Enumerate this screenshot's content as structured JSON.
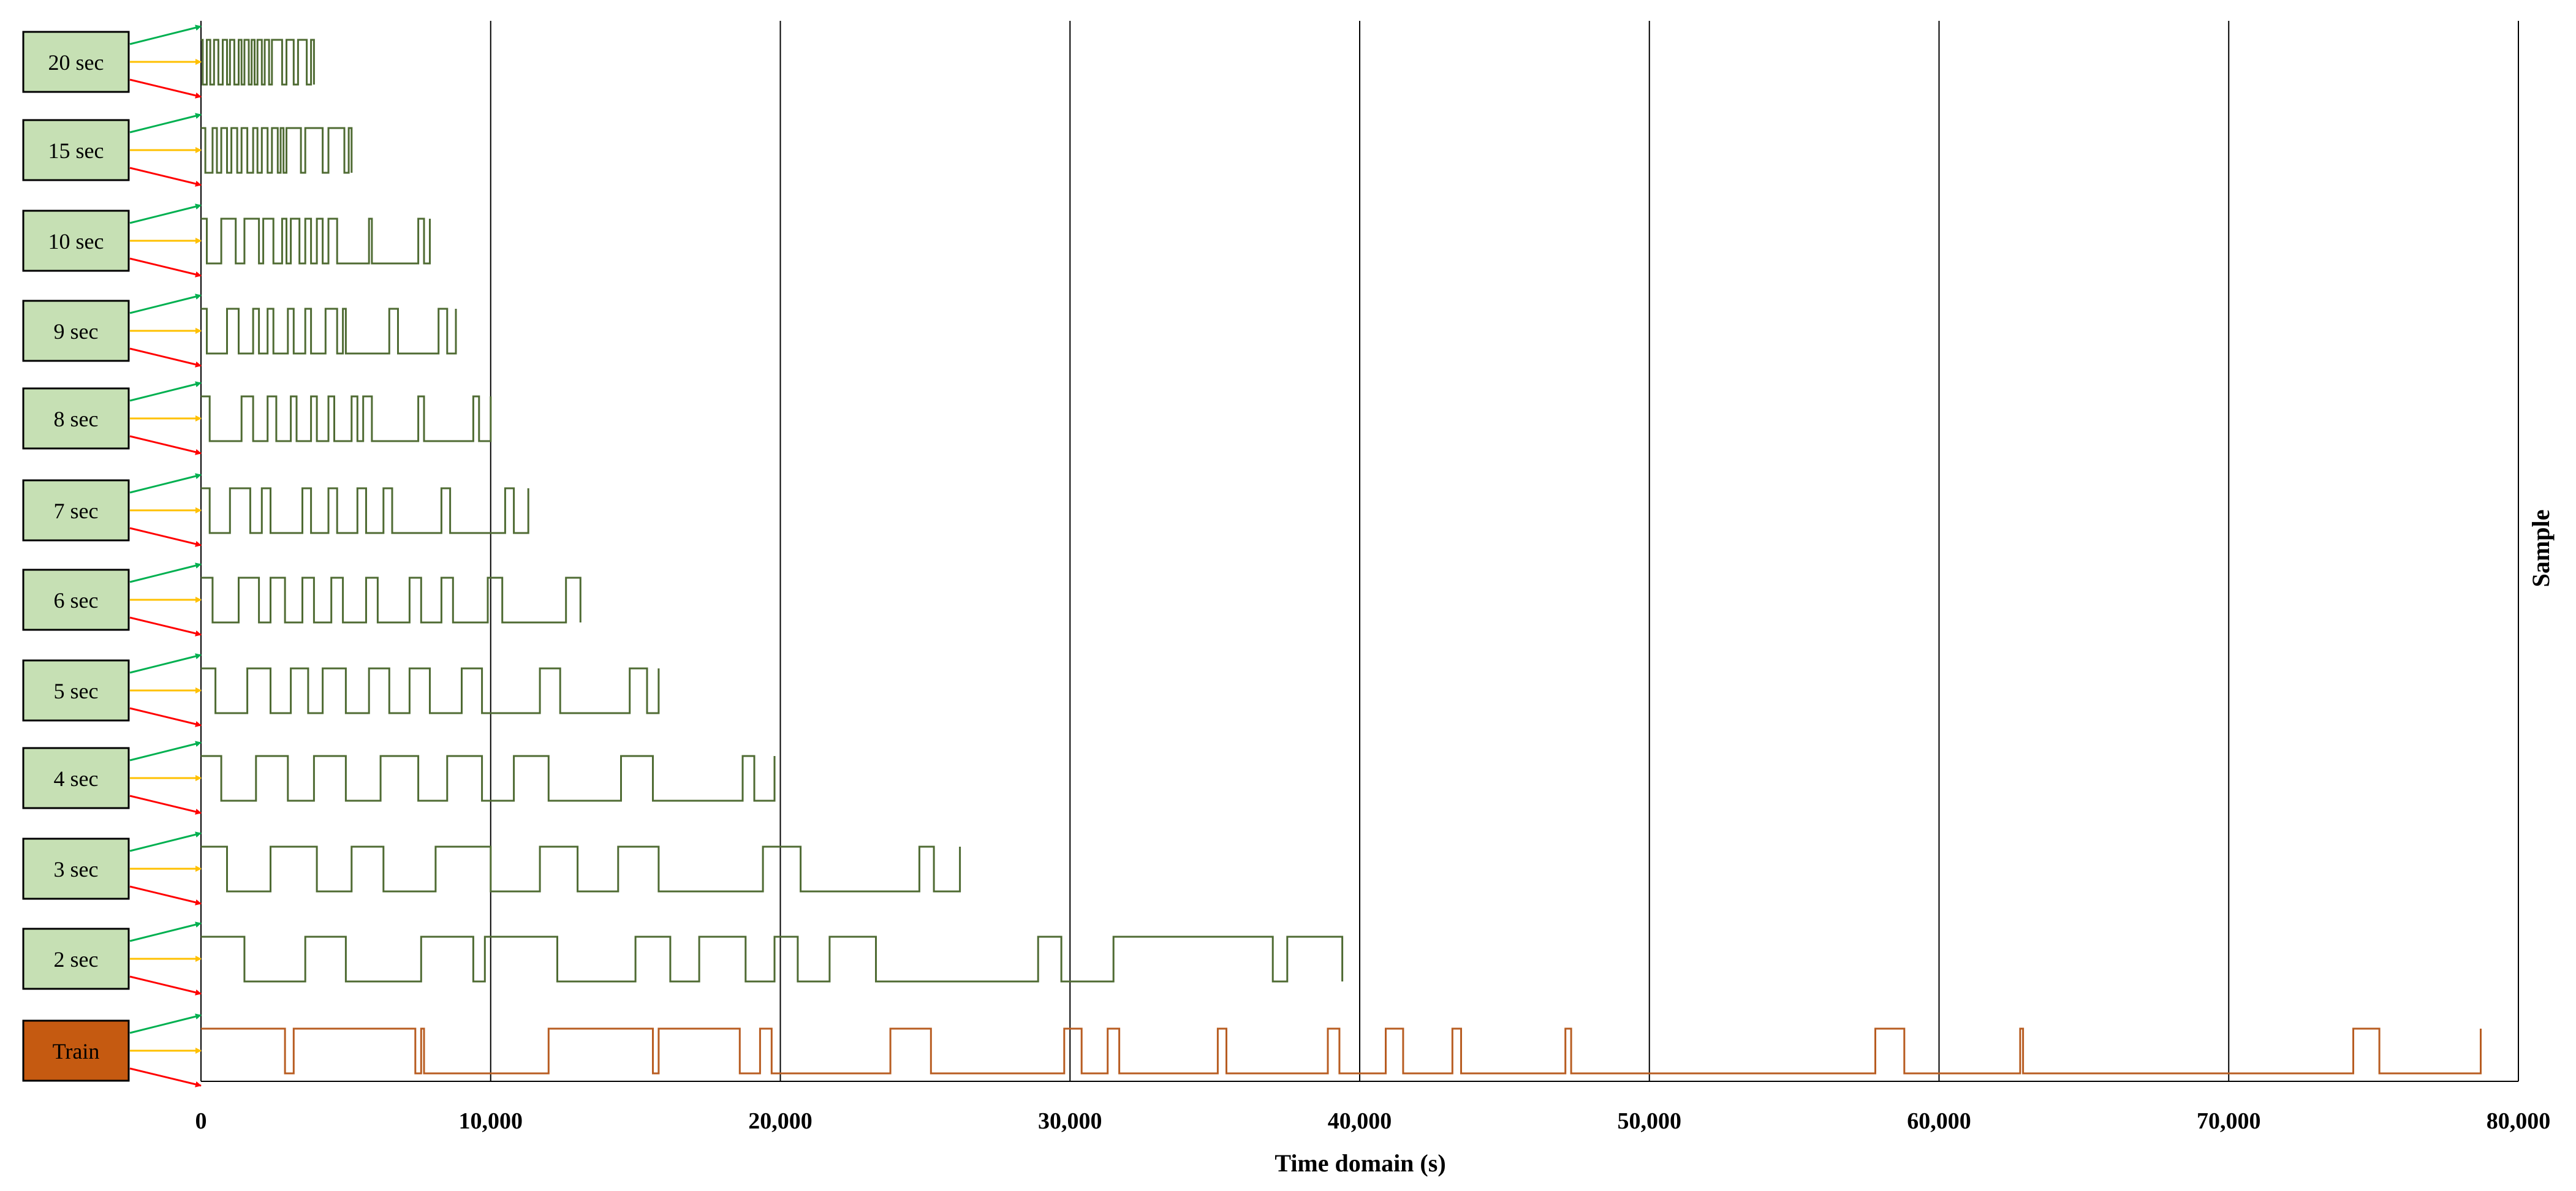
{
  "chart_data": {
    "type": "line",
    "title": "",
    "xlabel": "Time domain (s)",
    "ylabel": "Sample",
    "xlim": [
      0,
      80000
    ],
    "xticks": [
      0,
      10000,
      20000,
      30000,
      40000,
      50000,
      60000,
      70000,
      80000
    ],
    "xtick_labels": [
      "0",
      "10,000",
      "20,000",
      "30,000",
      "40,000",
      "50,000",
      "60,000",
      "70,000",
      "80,000"
    ],
    "grid": "vertical",
    "colors": {
      "sample_line": "#4f6b33",
      "train_line": "#b85d22",
      "sample_box": "#c6e0b4",
      "train_box": "#c55a11",
      "arrow_green": "#00b050",
      "arrow_yellow": "#ffc000",
      "arrow_red": "#ff0000"
    },
    "series": [
      {
        "label": "20 sec",
        "end": 3900,
        "transitions": [
          0,
          60,
          200,
          320,
          450,
          600,
          750,
          900,
          1000,
          1150,
          1300,
          1400,
          1500,
          1650,
          1750,
          1850,
          1950,
          2100,
          2200,
          2350,
          2450,
          2800,
          2950,
          3200,
          3350,
          3650,
          3800,
          3900
        ]
      },
      {
        "label": "15 sec",
        "end": 5200,
        "transitions": [
          0,
          150,
          400,
          550,
          700,
          900,
          1050,
          1250,
          1400,
          1600,
          1800,
          1950,
          2100,
          2300,
          2450,
          2650,
          2750,
          2850,
          2950,
          3450,
          3600,
          4200,
          4400,
          4950,
          5100,
          5200
        ]
      },
      {
        "label": "10 sec",
        "end": 7900,
        "transitions": [
          0,
          200,
          700,
          1200,
          1500,
          2000,
          2150,
          2500,
          2800,
          2950,
          3100,
          3400,
          3600,
          3800,
          4000,
          4200,
          4400,
          4700,
          5800,
          5900,
          7500,
          7700,
          7900
        ]
      },
      {
        "label": "9 sec",
        "end": 8800,
        "transitions": [
          0,
          200,
          900,
          1300,
          1800,
          2000,
          2300,
          2500,
          3000,
          3200,
          3600,
          3800,
          4300,
          4700,
          4900,
          5000,
          6500,
          6800,
          8200,
          8500,
          8800
        ]
      },
      {
        "label": "8 sec",
        "end": 10000,
        "transitions": [
          0,
          300,
          1400,
          1800,
          2300,
          2600,
          3100,
          3300,
          3800,
          4000,
          4400,
          4600,
          5200,
          5400,
          5600,
          5900,
          7500,
          7700,
          9400,
          9600,
          10000
        ]
      },
      {
        "label": "7 sec",
        "end": 11300,
        "transitions": [
          0,
          300,
          1000,
          1700,
          2100,
          2400,
          3500,
          3800,
          4400,
          4700,
          5400,
          5700,
          6300,
          6600,
          8300,
          8600,
          10500,
          10800,
          11300
        ]
      },
      {
        "label": "6 sec",
        "end": 13100,
        "transitions": [
          0,
          400,
          1300,
          2000,
          2400,
          2900,
          3500,
          3900,
          4500,
          4900,
          5700,
          6100,
          7200,
          7600,
          8300,
          8700,
          9900,
          10400,
          12600,
          13100
        ]
      },
      {
        "label": "5 sec",
        "end": 15800,
        "transitions": [
          0,
          500,
          1600,
          2400,
          3100,
          3700,
          4200,
          5000,
          5800,
          6500,
          7200,
          7900,
          9000,
          9700,
          11700,
          12400,
          14800,
          15400,
          15800
        ]
      },
      {
        "label": "4 sec",
        "end": 19800,
        "transitions": [
          0,
          700,
          1900,
          3000,
          3900,
          5000,
          6200,
          7500,
          8500,
          9700,
          10800,
          12000,
          14500,
          15600,
          18700,
          19100,
          19800
        ]
      },
      {
        "label": "3 sec",
        "end": 26200,
        "transitions": [
          0,
          900,
          2400,
          4000,
          5200,
          6300,
          8100,
          10000,
          11700,
          13000,
          14400,
          15800,
          19400,
          20700,
          24800,
          25300,
          26200
        ]
      },
      {
        "label": "2 sec",
        "end": 39400,
        "transitions": [
          0,
          1500,
          3600,
          5000,
          7600,
          9400,
          9800,
          12300,
          15000,
          16200,
          17200,
          18800,
          19800,
          20600,
          21700,
          23300,
          28900,
          29700,
          31500,
          37000,
          37500,
          39400
        ]
      },
      {
        "label": "Train",
        "train": true,
        "end": 78700,
        "transitions": [
          0,
          2900,
          3200,
          7400,
          7600,
          7700,
          12000,
          15600,
          15800,
          18600,
          19300,
          19700,
          23800,
          25200,
          29800,
          30400,
          31300,
          31700,
          35100,
          35400,
          38900,
          39300,
          40900,
          41500,
          43200,
          43500,
          47100,
          47300,
          57800,
          58800,
          62800,
          62900,
          74300,
          75200,
          78700
        ]
      }
    ]
  }
}
